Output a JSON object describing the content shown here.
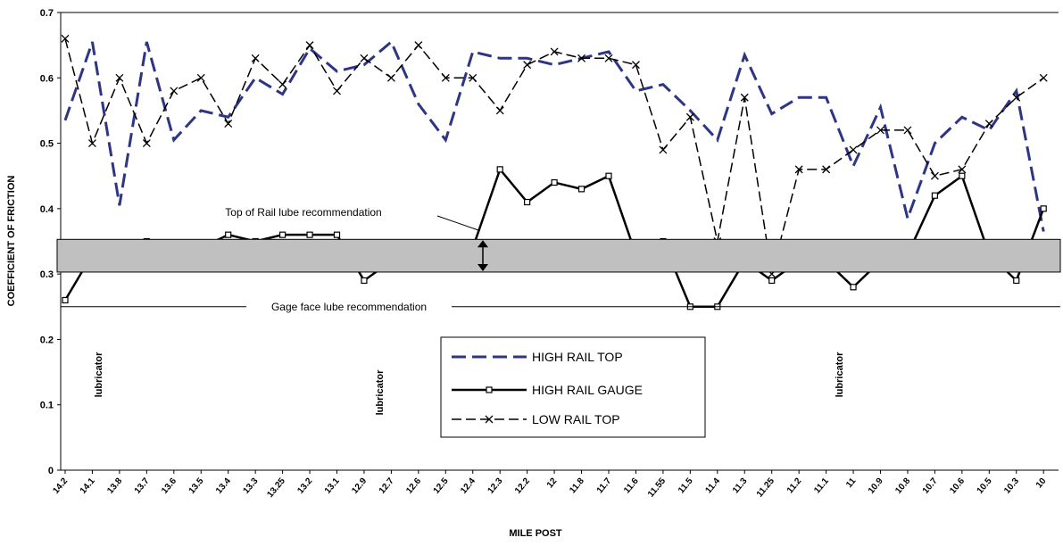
{
  "chart_data": {
    "type": "line",
    "x_label": "MILE POST",
    "y_label": "COEFFICIENT OF FRICTION",
    "categories": [
      "14.2",
      "14.1",
      "13.8",
      "13.7",
      "13.6",
      "13.5",
      "13.4",
      "13.3",
      "13.25",
      "13.2",
      "13.1",
      "12.9",
      "12.7",
      "12.6",
      "12.5",
      "12.4",
      "12.3",
      "12.2",
      "12",
      "11.8",
      "11.7",
      "11.6",
      "11.55",
      "11.5",
      "11.4",
      "11.3",
      "11.25",
      "11.2",
      "11.1",
      "11",
      "10.9",
      "10.8",
      "10.7",
      "10.6",
      "10.5",
      "10.3",
      "10"
    ],
    "series": [
      {
        "name": "HIGH RAIL TOP",
        "color": "#2e3585",
        "values": [
          0.535,
          0.655,
          0.405,
          0.655,
          0.505,
          0.55,
          0.54,
          0.6,
          0.575,
          0.645,
          0.61,
          0.62,
          0.655,
          0.56,
          0.505,
          0.64,
          0.63,
          0.63,
          0.62,
          0.63,
          0.64,
          0.58,
          0.59,
          0.55,
          0.505,
          0.635,
          0.545,
          0.57,
          0.57,
          0.465,
          0.555,
          0.385,
          0.5,
          0.54,
          0.52,
          0.58,
          0.365
        ]
      },
      {
        "name": "HIGH RAIL GAUGE",
        "color": "#000000",
        "values": [
          0.26,
          0.33,
          0.34,
          0.35,
          0.34,
          0.34,
          0.36,
          0.35,
          0.36,
          0.36,
          0.36,
          0.29,
          0.32,
          0.33,
          0.33,
          0.34,
          0.46,
          0.41,
          0.44,
          0.43,
          0.45,
          0.33,
          0.35,
          0.25,
          0.25,
          0.32,
          0.29,
          0.32,
          0.32,
          0.28,
          0.32,
          0.33,
          0.42,
          0.45,
          0.33,
          0.29,
          0.4
        ]
      },
      {
        "name": "LOW RAIL TOP",
        "color": "#000000",
        "values": [
          0.66,
          0.5,
          0.6,
          0.5,
          0.58,
          0.6,
          0.53,
          0.63,
          0.59,
          0.65,
          0.58,
          0.63,
          0.6,
          0.65,
          0.6,
          0.6,
          0.55,
          0.62,
          0.64,
          0.63,
          0.63,
          0.62,
          0.49,
          0.54,
          0.35,
          0.57,
          0.3,
          0.46,
          0.46,
          0.49,
          0.52,
          0.52,
          0.45,
          0.46,
          0.53,
          0.57,
          0.6
        ]
      }
    ],
    "ylim": [
      0,
      0.7
    ],
    "yticks": [
      0,
      0.1,
      0.2,
      0.3,
      0.4,
      0.5,
      0.6,
      0.7
    ],
    "top_of_rail_band": [
      0.303,
      0.353
    ],
    "top_of_rail_label": "Top of Rail lube recommendation",
    "gage_face_line": 0.25,
    "gage_face_label": "Gage face lube recommendation",
    "lubricators": [
      "lubricator",
      "lubricator",
      "lubricator"
    ]
  }
}
